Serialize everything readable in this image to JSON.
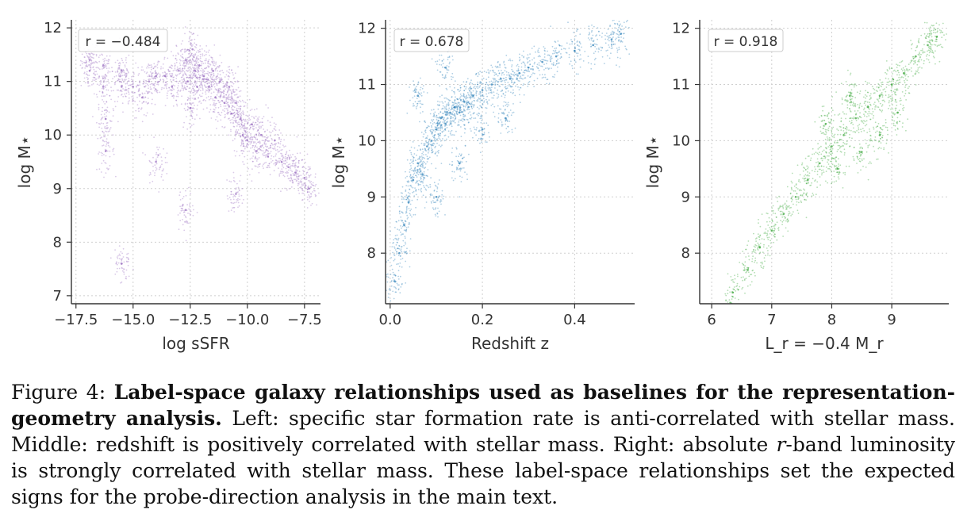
{
  "chart_data": [
    {
      "type": "scatter",
      "xlabel": "log sSFR",
      "ylabel": "log M⋆",
      "xlim": [
        -17.7,
        -6.8
      ],
      "ylim": [
        6.85,
        12.15
      ],
      "xticks": [
        -17.5,
        -15.0,
        -12.5,
        -10.0,
        -7.5
      ],
      "xtick_labels": [
        "−17.5",
        "−15.0",
        "−12.5",
        "−10.0",
        "−7.5"
      ],
      "yticks": [
        7,
        8,
        9,
        10,
        11,
        12
      ],
      "ytick_labels": [
        "7",
        "8",
        "9",
        "10",
        "11",
        "12"
      ],
      "grid": true,
      "annotation": "r = −0.484",
      "correlation": -0.484,
      "color": "#9467bd",
      "points": [
        [
          -16.9,
          11.4
        ],
        [
          -16.9,
          11.2
        ],
        [
          -16.3,
          11.3
        ],
        [
          -16.3,
          10.9
        ],
        [
          -16.2,
          10.3
        ],
        [
          -16.2,
          9.7
        ],
        [
          -15.5,
          11.2
        ],
        [
          -15.5,
          10.9
        ],
        [
          -15.0,
          10.9
        ],
        [
          -14.6,
          10.7
        ],
        [
          -14.3,
          11.0
        ],
        [
          -14.0,
          11.1
        ],
        [
          -13.6,
          11.1
        ],
        [
          -13.3,
          10.9
        ],
        [
          -13.0,
          11.2
        ],
        [
          -12.7,
          11.4
        ],
        [
          -12.6,
          11.0
        ],
        [
          -12.5,
          10.5
        ],
        [
          -12.4,
          11.6
        ],
        [
          -12.3,
          11.2
        ],
        [
          -12.2,
          10.9
        ],
        [
          -12.1,
          11.3
        ],
        [
          -11.9,
          11.1
        ],
        [
          -11.7,
          10.9
        ],
        [
          -11.5,
          11.2
        ],
        [
          -11.4,
          10.7
        ],
        [
          -11.2,
          11.0
        ],
        [
          -11.0,
          10.6
        ],
        [
          -10.8,
          10.9
        ],
        [
          -10.7,
          10.4
        ],
        [
          -10.5,
          10.6
        ],
        [
          -10.3,
          10.3
        ],
        [
          -10.2,
          10.0
        ],
        [
          -10.0,
          9.9
        ],
        [
          -9.8,
          10.2
        ],
        [
          -9.6,
          9.7
        ],
        [
          -9.4,
          10.0
        ],
        [
          -9.1,
          9.6
        ],
        [
          -8.8,
          9.9
        ],
        [
          -8.5,
          9.5
        ],
        [
          -8.2,
          9.4
        ],
        [
          -7.9,
          9.3
        ],
        [
          -7.5,
          9.2
        ],
        [
          -7.3,
          9.0
        ],
        [
          -12.7,
          8.6
        ],
        [
          -10.5,
          8.9
        ],
        [
          -14.0,
          9.5
        ],
        [
          -15.5,
          7.6
        ]
      ]
    },
    {
      "type": "scatter",
      "xlabel": "Redshift z",
      "ylabel": "log M⋆",
      "xlim": [
        -0.01,
        0.53
      ],
      "ylim": [
        7.1,
        12.15
      ],
      "xticks": [
        0.0,
        0.2,
        0.4
      ],
      "xtick_labels": [
        "0.0",
        "0.2",
        "0.4"
      ],
      "yticks": [
        8,
        9,
        10,
        11,
        12
      ],
      "ytick_labels": [
        "8",
        "9",
        "10",
        "11",
        "12"
      ],
      "grid": true,
      "annotation": "r = 0.678",
      "correlation": 0.678,
      "color": "#1f77b4",
      "points": [
        [
          0.01,
          7.5
        ],
        [
          0.02,
          8.0
        ],
        [
          0.03,
          8.5
        ],
        [
          0.04,
          8.9
        ],
        [
          0.05,
          9.3
        ],
        [
          0.06,
          9.6
        ],
        [
          0.07,
          9.4
        ],
        [
          0.08,
          9.9
        ],
        [
          0.09,
          10.0
        ],
        [
          0.1,
          10.2
        ],
        [
          0.11,
          10.4
        ],
        [
          0.12,
          10.3
        ],
        [
          0.13,
          10.5
        ],
        [
          0.14,
          10.6
        ],
        [
          0.15,
          10.5
        ],
        [
          0.16,
          10.7
        ],
        [
          0.17,
          10.6
        ],
        [
          0.18,
          10.8
        ],
        [
          0.2,
          10.9
        ],
        [
          0.22,
          11.0
        ],
        [
          0.24,
          11.1
        ],
        [
          0.26,
          11.1
        ],
        [
          0.28,
          11.2
        ],
        [
          0.3,
          11.3
        ],
        [
          0.33,
          11.4
        ],
        [
          0.36,
          11.5
        ],
        [
          0.4,
          11.6
        ],
        [
          0.44,
          11.7
        ],
        [
          0.48,
          11.8
        ],
        [
          0.5,
          11.9
        ],
        [
          0.06,
          10.8
        ],
        [
          0.1,
          9.0
        ],
        [
          0.15,
          9.6
        ],
        [
          0.2,
          10.2
        ],
        [
          0.25,
          10.4
        ],
        [
          0.12,
          11.3
        ]
      ]
    },
    {
      "type": "scatter",
      "xlabel": "L_r = −0.4 M_r",
      "ylabel": "log M⋆",
      "xlim": [
        5.8,
        9.95
      ],
      "ylim": [
        7.1,
        12.15
      ],
      "xticks": [
        6,
        7,
        8,
        9
      ],
      "xtick_labels": [
        "6",
        "7",
        "8",
        "9"
      ],
      "yticks": [
        8,
        9,
        10,
        11,
        12
      ],
      "ytick_labels": [
        "8",
        "9",
        "10",
        "11",
        "12"
      ],
      "grid": true,
      "annotation": "r = 0.918",
      "correlation": 0.918,
      "color": "#2ca02c",
      "points": [
        [
          6.35,
          7.3
        ],
        [
          6.6,
          7.7
        ],
        [
          6.8,
          8.1
        ],
        [
          7.0,
          8.4
        ],
        [
          7.2,
          8.7
        ],
        [
          7.4,
          9.0
        ],
        [
          7.6,
          9.3
        ],
        [
          7.8,
          9.6
        ],
        [
          8.0,
          9.9
        ],
        [
          8.2,
          10.1
        ],
        [
          8.4,
          10.4
        ],
        [
          8.6,
          10.6
        ],
        [
          8.8,
          10.8
        ],
        [
          9.0,
          11.0
        ],
        [
          9.2,
          11.2
        ],
        [
          9.4,
          11.5
        ],
        [
          9.6,
          11.7
        ],
        [
          9.75,
          11.85
        ],
        [
          8.1,
          9.5
        ],
        [
          8.5,
          9.8
        ],
        [
          8.8,
          10.1
        ],
        [
          7.9,
          10.3
        ],
        [
          8.3,
          10.8
        ],
        [
          9.1,
          10.5
        ]
      ]
    }
  ],
  "caption": {
    "prefix": "Figure 4: ",
    "bold": "Label-space galaxy relationships used as baselines for the representation-geometry analysis.",
    "middle": " Left: specific star formation rate is anti-correlated with stellar mass. Middle: redshift is positively correlated with stellar mass. Right: absolute ",
    "italic": "r",
    "suffix": "-band luminosity is strongly correlated with stellar mass. These label-space relationships set the expected signs for the probe-direction analysis in the main text."
  }
}
